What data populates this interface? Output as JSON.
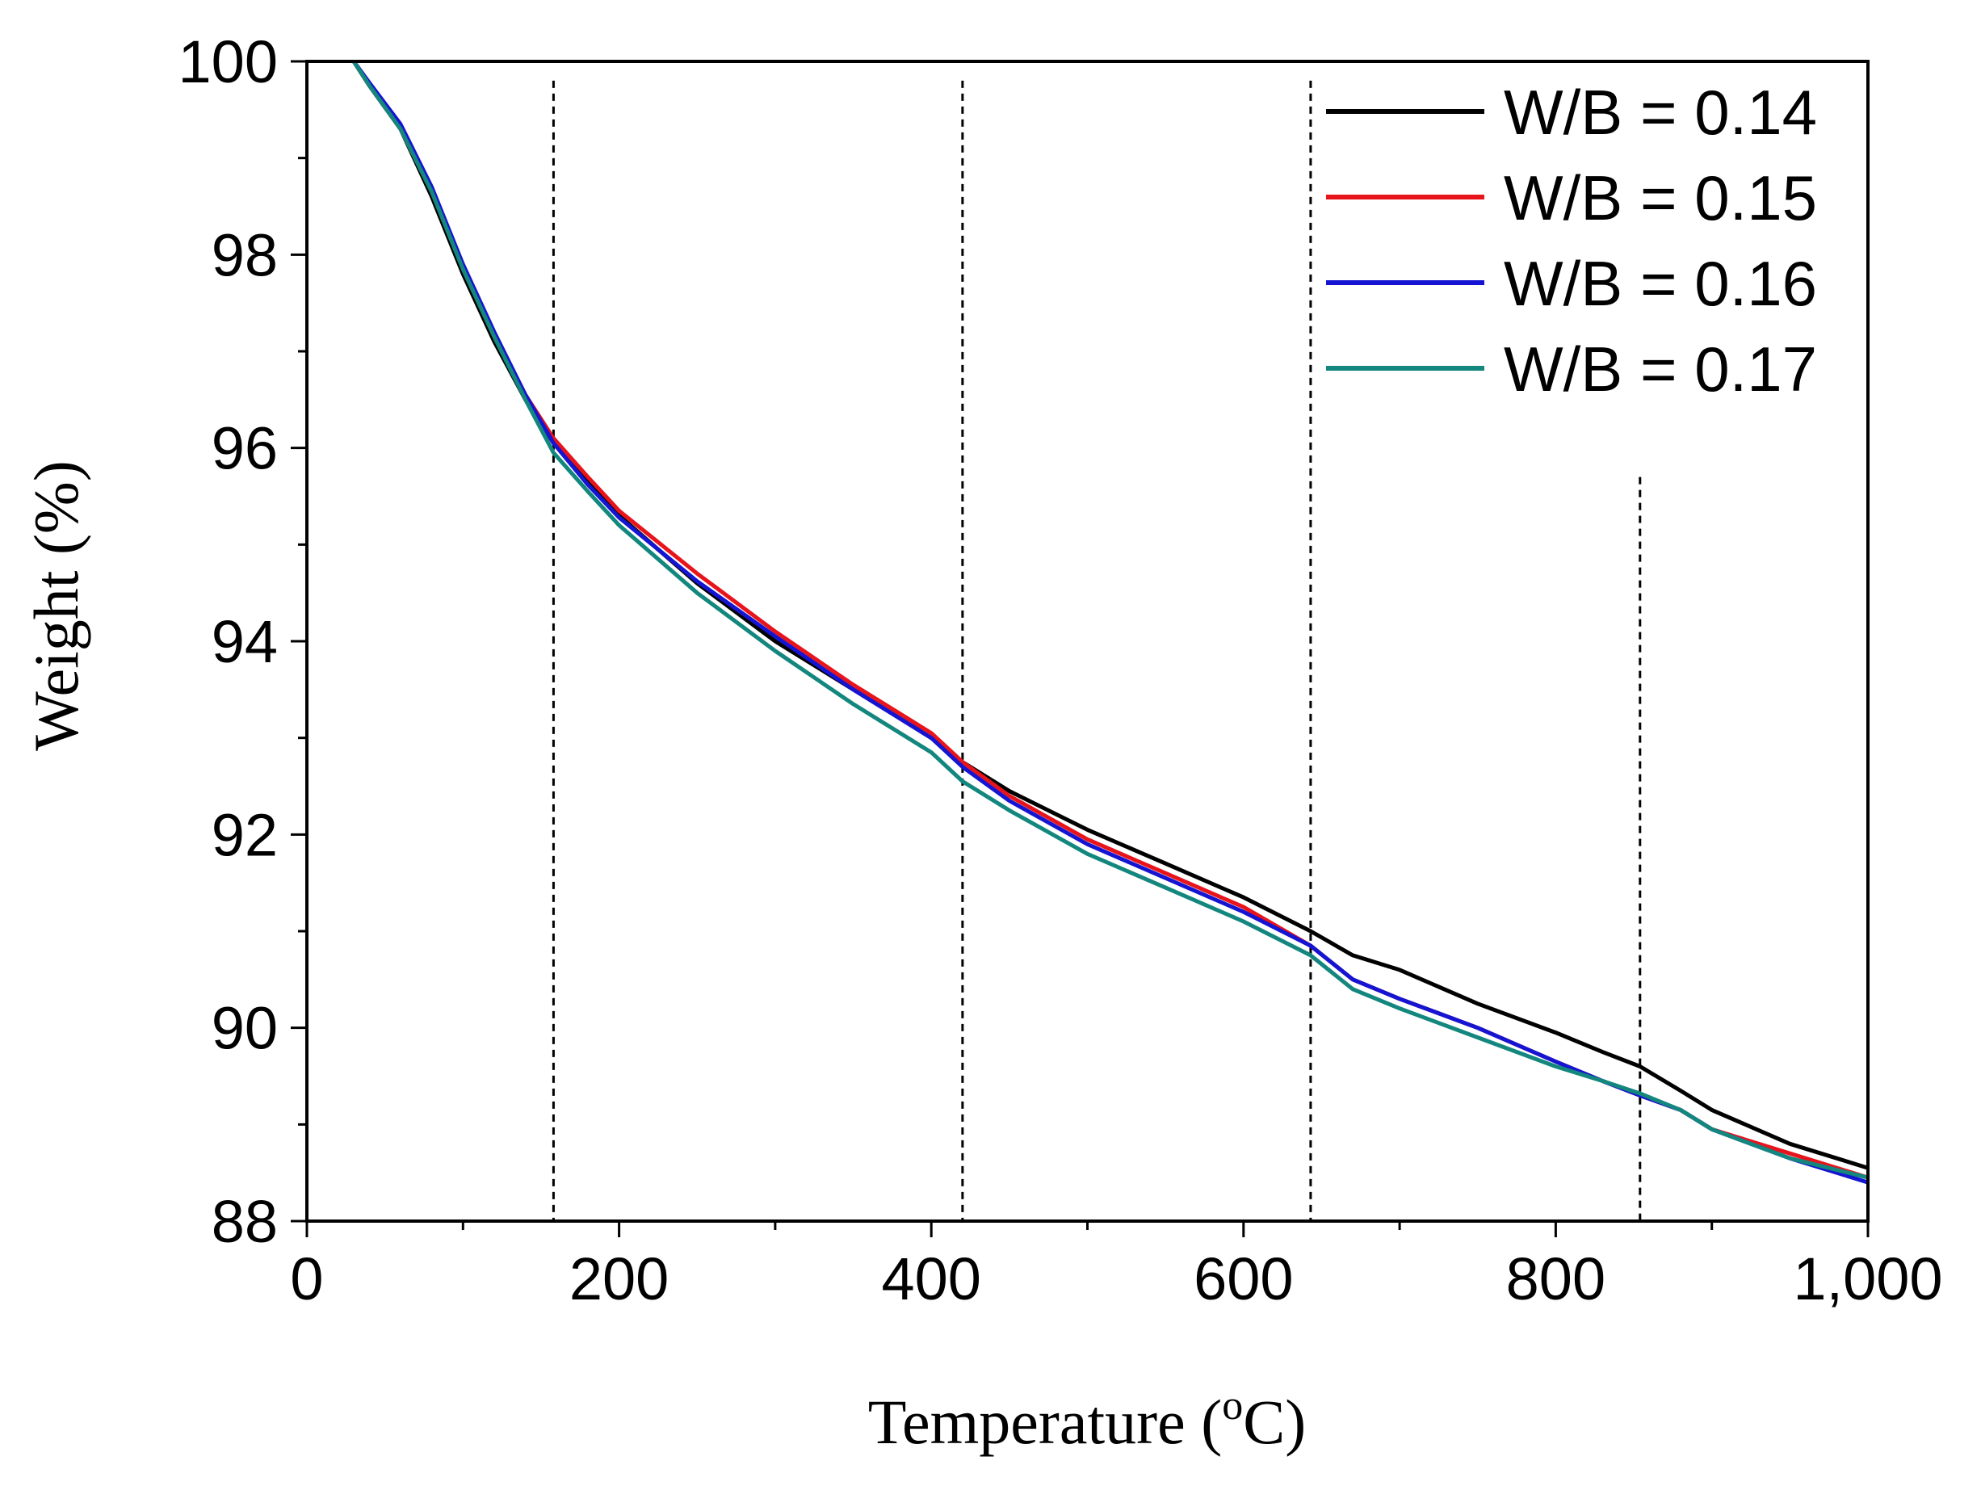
{
  "chart_data": {
    "type": "line",
    "xlabel": "Temperature (",
    "xlabel_sup": "o",
    "xlabel_unit": "C)",
    "ylabel": "Weight (%)",
    "xlim": [
      0,
      1000
    ],
    "ylim": [
      88,
      100
    ],
    "x_ticks": [
      "0",
      "200",
      "400",
      "600",
      "800",
      "1,000"
    ],
    "x_tick_values": [
      0,
      200,
      400,
      600,
      800,
      1000
    ],
    "y_ticks": [
      "88",
      "90",
      "92",
      "94",
      "96",
      "98",
      "100"
    ],
    "y_tick_values": [
      88,
      90,
      92,
      94,
      96,
      98,
      100
    ],
    "grid": false,
    "legend_position": "top-right",
    "reference_lines_x": [
      158,
      420,
      643,
      854
    ],
    "reference_lines_top": [
      99.8,
      99.8,
      99.8,
      95.7
    ],
    "series": [
      {
        "name": "W/B = 0.14",
        "color": "#000000",
        "x": [
          30,
          40,
          60,
          80,
          100,
          120,
          140,
          158,
          180,
          200,
          250,
          300,
          350,
          400,
          420,
          450,
          500,
          550,
          600,
          643,
          670,
          700,
          750,
          800,
          830,
          854,
          880,
          900,
          950,
          1000
        ],
        "y": [
          100,
          99.75,
          99.3,
          98.6,
          97.8,
          97.1,
          96.5,
          96.05,
          95.65,
          95.3,
          94.6,
          94.0,
          93.5,
          93.0,
          92.75,
          92.45,
          92.05,
          91.7,
          91.35,
          91.0,
          90.75,
          90.6,
          90.25,
          89.95,
          89.75,
          89.6,
          89.35,
          89.15,
          88.8,
          88.55
        ]
      },
      {
        "name": "W/B = 0.15",
        "color": "#e8141c",
        "x": [
          30,
          40,
          60,
          80,
          100,
          120,
          140,
          158,
          180,
          200,
          250,
          300,
          350,
          400,
          420,
          450,
          500,
          550,
          600,
          643,
          670,
          700,
          750,
          800,
          830,
          854,
          880,
          900,
          950,
          1000
        ],
        "y": [
          100,
          99.75,
          99.3,
          98.65,
          97.85,
          97.15,
          96.55,
          96.1,
          95.7,
          95.35,
          94.7,
          94.1,
          93.55,
          93.05,
          92.75,
          92.4,
          91.95,
          91.6,
          91.25,
          90.85,
          90.5,
          90.3,
          90.0,
          89.65,
          89.45,
          89.3,
          89.15,
          88.95,
          88.7,
          88.45
        ]
      },
      {
        "name": "W/B = 0.16",
        "color": "#1414d2",
        "x": [
          30,
          40,
          60,
          80,
          100,
          120,
          140,
          158,
          180,
          200,
          250,
          300,
          350,
          400,
          420,
          450,
          500,
          550,
          600,
          643,
          670,
          700,
          750,
          800,
          830,
          854,
          880,
          900,
          950,
          1000
        ],
        "y": [
          100,
          99.78,
          99.35,
          98.7,
          97.9,
          97.2,
          96.55,
          96.05,
          95.62,
          95.28,
          94.62,
          94.05,
          93.5,
          93.0,
          92.7,
          92.35,
          91.9,
          91.55,
          91.2,
          90.85,
          90.5,
          90.3,
          90.0,
          89.65,
          89.45,
          89.3,
          89.15,
          88.95,
          88.65,
          88.4
        ]
      },
      {
        "name": "W/B = 0.17",
        "color": "#13877e",
        "x": [
          30,
          40,
          60,
          80,
          100,
          120,
          140,
          158,
          180,
          200,
          250,
          300,
          350,
          400,
          420,
          450,
          500,
          550,
          600,
          643,
          670,
          700,
          750,
          800,
          830,
          854,
          880,
          900,
          950,
          1000
        ],
        "y": [
          100,
          99.75,
          99.3,
          98.65,
          97.85,
          97.15,
          96.5,
          95.95,
          95.55,
          95.2,
          94.5,
          93.9,
          93.35,
          92.85,
          92.55,
          92.25,
          91.8,
          91.45,
          91.1,
          90.75,
          90.4,
          90.2,
          89.9,
          89.6,
          89.45,
          89.32,
          89.15,
          88.95,
          88.65,
          88.45
        ]
      }
    ]
  }
}
